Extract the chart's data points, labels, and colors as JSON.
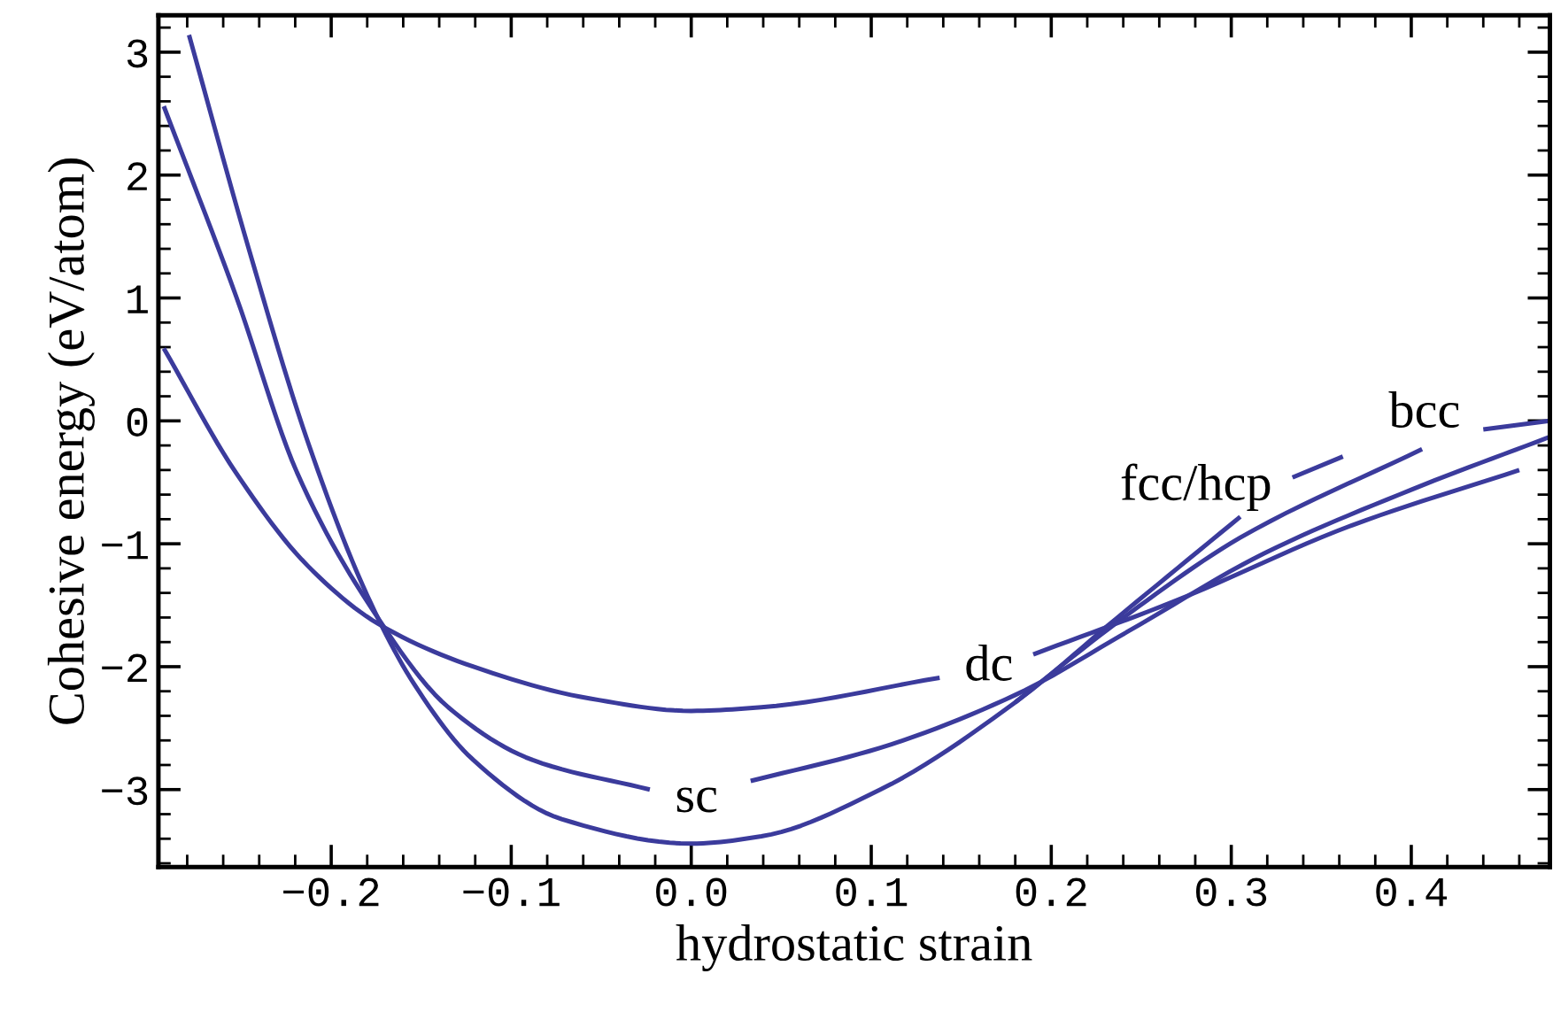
{
  "chart_data": {
    "type": "line",
    "xlabel": "hydrostatic strain",
    "ylabel": "Cohesive energy (eV/atom)",
    "xlim": [
      -0.296,
      0.477
    ],
    "ylim": [
      -3.63,
      3.3
    ],
    "xticks": [
      {
        "value": -0.2,
        "label": "−0.2"
      },
      {
        "value": -0.1,
        "label": "−0.1"
      },
      {
        "value": 0.0,
        "label": "0.0"
      },
      {
        "value": 0.1,
        "label": "0.1"
      },
      {
        "value": 0.2,
        "label": "0.2"
      },
      {
        "value": 0.3,
        "label": "0.3"
      },
      {
        "value": 0.4,
        "label": "0.4"
      }
    ],
    "yticks": [
      {
        "value": -3,
        "label": "−3"
      },
      {
        "value": -2,
        "label": "−2"
      },
      {
        "value": -1,
        "label": "−1"
      },
      0,
      1,
      2,
      3
    ],
    "grid": false,
    "marker": "none",
    "line_style": "solid",
    "series": [
      {
        "color": "#3b3b9c",
        "x": [
          -0.279,
          -0.246,
          -0.213,
          -0.18,
          -0.154,
          -0.121,
          -0.072,
          0.0,
          0.039,
          0.105,
          0.18,
          0.236,
          0.305,
          0.32,
          0.334,
          0.362
        ],
        "values": [
          3.14,
          1.41,
          -0.17,
          -1.42,
          -2.14,
          -2.76,
          -3.24,
          -3.44,
          -3.38,
          -3.0,
          -2.29,
          -1.61,
          -0.78,
          null,
          -0.46,
          -0.29
        ]
      },
      {
        "color": "#3b3b9c",
        "x": [
          0.18,
          0.243,
          0.305,
          0.406,
          0.423,
          0.44,
          0.477
        ],
        "values": [
          -2.29,
          -1.57,
          -0.95,
          -0.23,
          null,
          -0.07,
          0.0
        ]
      },
      {
        "color": "#3b3b9c",
        "x": [
          -0.293,
          -0.253,
          -0.219,
          -0.18,
          -0.135,
          -0.088,
          -0.023,
          0.003,
          0.033,
          0.105,
          0.18,
          0.243,
          0.318,
          0.4,
          0.477
        ],
        "values": [
          2.56,
          1.02,
          -0.42,
          -1.47,
          -2.33,
          -2.76,
          -3.0,
          null,
          -2.93,
          -2.66,
          -2.23,
          -1.71,
          -1.08,
          -0.56,
          -0.13
        ]
      },
      {
        "color": "#3b3b9c",
        "x": [
          -0.293,
          -0.253,
          -0.213,
          -0.174,
          -0.121,
          -0.056,
          0.0,
          0.039,
          0.138,
          0.165,
          0.19,
          0.268,
          0.367,
          0.46
        ],
        "values": [
          0.59,
          -0.42,
          -1.18,
          -1.65,
          -2.0,
          -2.26,
          -2.36,
          -2.33,
          -2.09,
          null,
          -1.9,
          -1.47,
          -0.85,
          -0.4
        ]
      }
    ],
    "annotations": [
      {
        "text": "fcc/hcp",
        "x": 0.305,
        "y": -0.78
      },
      {
        "text": "bcc",
        "x": 0.406,
        "y": -0.23
      },
      {
        "text": "sc",
        "x": -0.023,
        "y": -3.0
      },
      {
        "text": "dc",
        "x": 0.138,
        "y": -2.09
      }
    ]
  }
}
